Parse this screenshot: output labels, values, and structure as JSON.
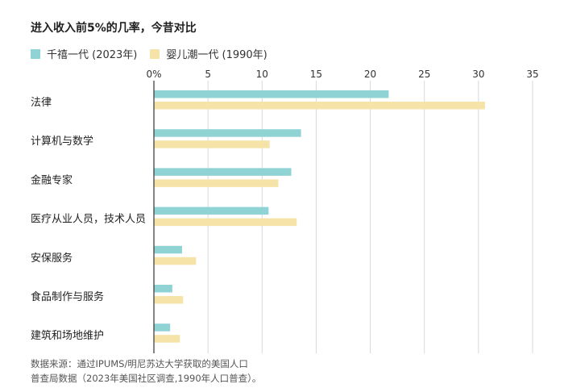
{
  "colors": {
    "series_2023": "#8fd3d5",
    "series_1990": "#f5e3a8",
    "axis": "#333333",
    "grid": "#d9d9d9"
  },
  "chart_data": {
    "type": "bar",
    "orientation": "horizontal",
    "title": "进入收入前5%的几率，今昔对比",
    "categories": [
      "法律",
      "计算机与数学",
      "金融专家",
      "医疗从业人员，技术人员",
      "安保服务",
      "食品制作与服务",
      "建筑和场地维护"
    ],
    "series": [
      {
        "name": "千禧一代 (2023年)",
        "values": [
          21.7,
          13.6,
          12.7,
          10.6,
          2.6,
          1.7,
          1.5
        ]
      },
      {
        "name": "婴儿潮一代 (1990年)",
        "values": [
          30.6,
          10.7,
          11.5,
          13.2,
          3.9,
          2.7,
          2.4
        ]
      }
    ],
    "xlim": [
      0,
      35
    ],
    "xticks": [
      "0%",
      "5",
      "10",
      "15",
      "20",
      "25",
      "30",
      "35"
    ],
    "grid": true,
    "legend_position": "top-left"
  },
  "source_note": {
    "line1": "数据来源：通过IPUMS/明尼苏达大学获取的美国人口",
    "line2": "普查局数据（2023年美国社区调查,1990年人口普查）。"
  }
}
